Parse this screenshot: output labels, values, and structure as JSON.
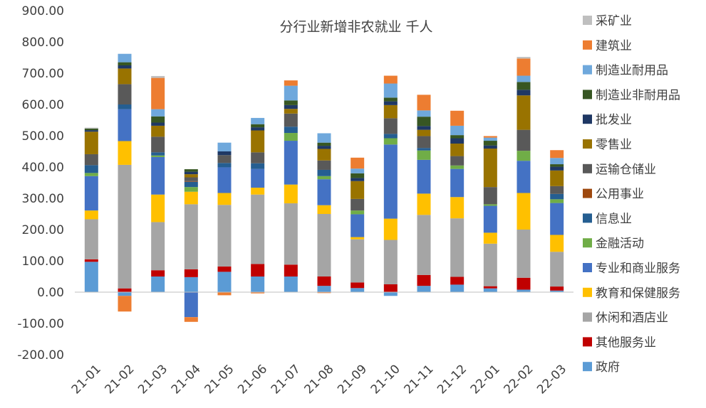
{
  "chart_data": {
    "type": "bar",
    "stacked": true,
    "title": "分行业新增非农就业 千人",
    "xlabel": "",
    "ylabel": "",
    "ylim": [
      -200,
      900
    ],
    "yticks": [
      -200,
      -100,
      0,
      100,
      200,
      300,
      400,
      500,
      600,
      700,
      800,
      900
    ],
    "ytick_labels": [
      "-200.00",
      "-100.00",
      "0.00",
      "100.00",
      "200.00",
      "300.00",
      "400.00",
      "500.00",
      "600.00",
      "700.00",
      "800.00",
      "900.00"
    ],
    "grid": false,
    "legend": "right",
    "categories": [
      "21-01",
      "21-02",
      "21-03",
      "21-04",
      "21-05",
      "21-06",
      "21-07",
      "21-08",
      "21-09",
      "21-10",
      "21-11",
      "21-12",
      "22-01",
      "22-02",
      "22-03"
    ],
    "series": [
      {
        "name": "政府",
        "color": "#5b9bd5",
        "values": [
          97,
          -12,
          50,
          48,
          65,
          50,
          50,
          20,
          13,
          -12,
          20,
          24,
          12,
          8,
          5
        ]
      },
      {
        "name": "其他服务业",
        "color": "#c00000",
        "values": [
          8,
          12,
          20,
          25,
          17,
          40,
          38,
          30,
          18,
          25,
          35,
          25,
          7,
          38,
          13
        ]
      },
      {
        "name": "休闲和酒店业",
        "color": "#a5a5a5",
        "values": [
          128,
          395,
          154,
          208,
          197,
          222,
          196,
          200,
          138,
          142,
          192,
          187,
          136,
          154,
          111
        ]
      },
      {
        "name": "教育和保健服务",
        "color": "#ffc000",
        "values": [
          28,
          76,
          88,
          40,
          38,
          22,
          60,
          28,
          7,
          68,
          68,
          68,
          35,
          117,
          54
        ]
      },
      {
        "name": "专业和商业服务",
        "color": "#4472c4",
        "values": [
          110,
          102,
          120,
          -80,
          82,
          60,
          140,
          83,
          73,
          237,
          108,
          90,
          86,
          103,
          102
        ]
      },
      {
        "name": "金融活动",
        "color": "#70ad47",
        "values": [
          10,
          0,
          5,
          15,
          0,
          0,
          25,
          10,
          12,
          20,
          30,
          11,
          5,
          32,
          12
        ]
      },
      {
        "name": "信息业",
        "color": "#255e91",
        "values": [
          25,
          15,
          10,
          17,
          14,
          18,
          20,
          20,
          0,
          14,
          8,
          0,
          0,
          0,
          17
        ]
      },
      {
        "name": "公用事业",
        "color": "#9e480e",
        "values": [
          0,
          0,
          0,
          2,
          0,
          0,
          0,
          0,
          0,
          0,
          0,
          0,
          0,
          0,
          0
        ]
      },
      {
        "name": "运输仓储业",
        "color": "#595959",
        "values": [
          35,
          65,
          50,
          12,
          25,
          35,
          42,
          30,
          37,
          50,
          38,
          30,
          55,
          67,
          25
        ]
      },
      {
        "name": "零售业",
        "color": "#997300",
        "values": [
          72,
          50,
          35,
          10,
          0,
          70,
          15,
          37,
          57,
          42,
          20,
          40,
          123,
          110,
          50
        ]
      },
      {
        "name": "批发业",
        "color": "#1f3864",
        "values": [
          5,
          10,
          10,
          8,
          12,
          10,
          12,
          10,
          10,
          12,
          12,
          17,
          10,
          18,
          12
        ]
      },
      {
        "name": "制造业非耐用品",
        "color": "#375623",
        "values": [
          5,
          10,
          20,
          8,
          0,
          10,
          15,
          10,
          15,
          12,
          30,
          10,
          15,
          25,
          8
        ]
      },
      {
        "name": "制造业耐用品",
        "color": "#6fa8dc",
        "values": [
          0,
          27,
          23,
          0,
          28,
          20,
          47,
          30,
          15,
          45,
          20,
          30,
          10,
          20,
          20
        ]
      },
      {
        "name": "建筑业",
        "color": "#ed7d31",
        "values": [
          0,
          -50,
          100,
          -15,
          -10,
          -4,
          17,
          -3,
          35,
          25,
          50,
          48,
          5,
          55,
          25
        ]
      },
      {
        "name": "采矿业",
        "color": "#bfbfbf",
        "values": [
          3,
          0,
          6,
          0,
          0,
          0,
          0,
          0,
          0,
          0,
          0,
          0,
          0,
          5,
          0
        ]
      }
    ]
  }
}
